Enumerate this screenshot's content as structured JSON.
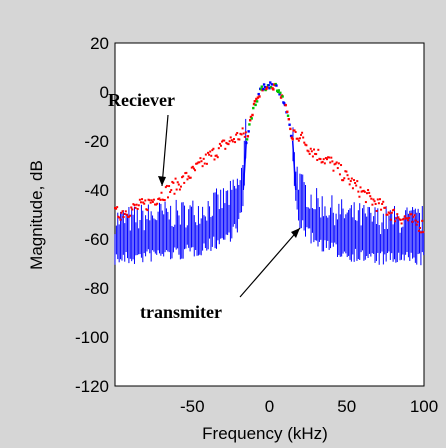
{
  "chart_data": {
    "type": "scatter",
    "title": "",
    "xlabel": "Frequency (kHz)",
    "ylabel": "Magnitude, dB",
    "xlim": [
      -100,
      100
    ],
    "ylim": [
      -120,
      20
    ],
    "xticks": [
      -50,
      0,
      50,
      100
    ],
    "yticks": [
      20,
      0,
      -20,
      -40,
      -60,
      -80,
      -100,
      -120
    ],
    "grid": false,
    "colors": {
      "receiver": "#ff0000",
      "transmitter": "#0000ff",
      "center": "#00c000",
      "background": "#d6d6d6",
      "plot_bg": "#ffffff"
    },
    "series": [
      {
        "name": "Reciever",
        "color": "#ff0000",
        "x": [
          -100,
          -90,
          -80,
          -70,
          -60,
          -50,
          -40,
          -30,
          -20,
          -15,
          15,
          20,
          25,
          30,
          40,
          50,
          60,
          70,
          80,
          90,
          100
        ],
        "y": [
          -50,
          -48,
          -46,
          -42,
          -38,
          -33,
          -27,
          -22,
          -18,
          -17,
          -16,
          -18,
          -22,
          -25,
          -29,
          -35,
          -41,
          -46,
          -50,
          -52,
          -55
        ]
      },
      {
        "name": "transmiter",
        "color": "#0000ff",
        "x": [
          -100,
          -90,
          -80,
          -70,
          -60,
          -50,
          -40,
          -30,
          -25,
          -20,
          -17,
          -15,
          15,
          17,
          20,
          25,
          30,
          40,
          50,
          60,
          70,
          80,
          90,
          100
        ],
        "y": [
          -62,
          -62,
          -61,
          -60,
          -60,
          -59,
          -57,
          -54,
          -52,
          -48,
          -40,
          -20,
          -20,
          -40,
          -48,
          -52,
          -55,
          -58,
          -60,
          -61,
          -62,
          -62,
          -62,
          -62
        ]
      },
      {
        "x": [
          -15,
          -10,
          -5,
          0,
          5,
          10,
          15
        ],
        "y": [
          -20,
          -5,
          1,
          3,
          2,
          -5,
          -20
        ]
      }
    ],
    "annotations": [
      {
        "text": "Reciever",
        "target": "receiver curve near (-50, -33)"
      },
      {
        "text": "transmiter",
        "target": "transmitter curve near (22, -57)"
      }
    ]
  }
}
